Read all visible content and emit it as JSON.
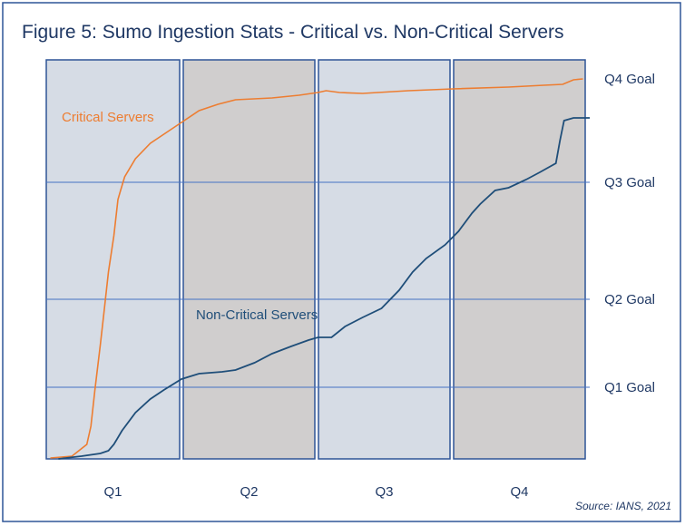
{
  "chart_data": {
    "type": "line",
    "title": "Figure 5: Sumo Ingestion Stats - Critical vs. Non-Critical Servers",
    "source": "Source: IANS, 2021",
    "x_categories": [
      "Q1",
      "Q2",
      "Q3",
      "Q4"
    ],
    "xlim": [
      0,
      4
    ],
    "ylim": [
      0,
      440
    ],
    "grid": false,
    "quarter_fill_colors": [
      "#d6dce5",
      "#d0cece",
      "#d6dce5",
      "#d0cece"
    ],
    "goals": [
      {
        "label": "Q1 Goal",
        "value": 79
      },
      {
        "label": "Q2 Goal",
        "value": 176
      },
      {
        "label": "Q3 Goal",
        "value": 305
      },
      {
        "label": "Q4 Goal",
        "value": 419
      }
    ],
    "series": [
      {
        "name": "Critical Servers",
        "color": "#ed7d31",
        "x": [
          0.03,
          0.19,
          0.3,
          0.33,
          0.36,
          0.4,
          0.43,
          0.46,
          0.5,
          0.53,
          0.55,
          0.58,
          0.66,
          0.77,
          0.87,
          1.0,
          1.13,
          1.27,
          1.4,
          1.67,
          1.87,
          2.01,
          2.07,
          2.17,
          2.34,
          2.68,
          3.01,
          3.42,
          3.68,
          3.82,
          3.9,
          3.97
        ],
        "y": [
          1,
          3,
          16,
          36,
          76,
          126,
          166,
          206,
          246,
          286,
          296,
          311,
          331,
          348,
          358,
          371,
          384,
          391,
          396,
          398,
          401,
          404,
          406,
          404,
          403,
          406,
          408,
          410,
          412,
          413,
          418,
          419
        ]
      },
      {
        "name": "Non-Critical Servers",
        "color": "#1f4e79",
        "x": [
          0.09,
          0.26,
          0.4,
          0.46,
          0.5,
          0.56,
          0.66,
          0.77,
          0.87,
          1.0,
          1.13,
          1.3,
          1.4,
          1.54,
          1.67,
          1.81,
          1.94,
          2.01,
          2.11,
          2.21,
          2.34,
          2.48,
          2.61,
          2.71,
          2.81,
          2.95,
          3.05,
          3.15,
          3.21,
          3.32,
          3.42,
          3.55,
          3.65,
          3.77,
          3.8,
          3.83,
          3.9,
          4.02
        ],
        "y": [
          0,
          3,
          6,
          9,
          16,
          31,
          51,
          66,
          76,
          88,
          94,
          96,
          98,
          106,
          116,
          124,
          131,
          134,
          134,
          146,
          156,
          166,
          186,
          206,
          221,
          236,
          251,
          271,
          281,
          296,
          299,
          308,
          316,
          326,
          351,
          373,
          376,
          376
        ]
      }
    ]
  }
}
